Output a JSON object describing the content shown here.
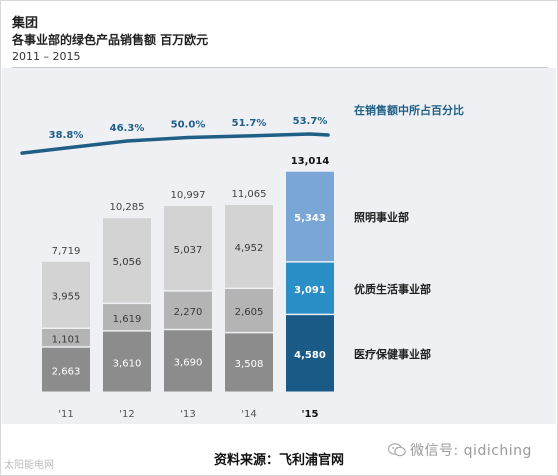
{
  "header": {
    "title": "集团",
    "subtitle": "各事业部的绿色产品销售额  百万欧元",
    "period": "2011 – 2015"
  },
  "footer": {
    "source": "资料来源：飞利浦官网",
    "wechat": "微信号: qidiching",
    "corner_mark": "太阳能电网"
  },
  "chart_data": {
    "type": "bar",
    "stacked": true,
    "categories": [
      "'11",
      "'12",
      "'13",
      "'14",
      "'15"
    ],
    "series": [
      {
        "name": "医疗保健事业部",
        "values": [
          2663,
          3610,
          3690,
          3508,
          4580
        ]
      },
      {
        "name": "优质生活事业部",
        "values": [
          1101,
          1619,
          2270,
          2605,
          3091
        ]
      },
      {
        "name": "照明事业部",
        "values": [
          3955,
          5056,
          5037,
          4952,
          5343
        ]
      }
    ],
    "value_labels": [
      [
        "2,663",
        "3,610",
        "3,690",
        "3,508",
        "4,580"
      ],
      [
        "1,101",
        "1,619",
        "2,270",
        "2,605",
        "3,091"
      ],
      [
        "3,955",
        "5,056",
        "5,037",
        "4,952",
        "5,343"
      ]
    ],
    "totals": [
      7719,
      10285,
      10997,
      11065,
      13014
    ],
    "total_labels": [
      "7,719",
      "10,285",
      "10,997",
      "11,065",
      "13,014"
    ],
    "share_line": {
      "name": "在销售额中所占百分比",
      "values": [
        38.8,
        46.3,
        50.0,
        51.7,
        53.7
      ],
      "labels": [
        "38.8%",
        "46.3%",
        "50.0%",
        "51.7%",
        "53.7%"
      ],
      "color": "#1f5f86"
    },
    "ylim": [
      0,
      14000
    ],
    "grid": false,
    "legend": "right",
    "highlight_category": "'15",
    "colors": {
      "past": [
        "#8c8c8c",
        "#b4b4b4",
        "#d3d3d3"
      ],
      "highlight": [
        "#1a5a86",
        "#2a8fc7",
        "#7aa6d6"
      ],
      "label_light": "#ffffff",
      "label_dark": "#3a3a3a",
      "legend_text": "#222222",
      "line_label": "#1f5f86"
    }
  }
}
